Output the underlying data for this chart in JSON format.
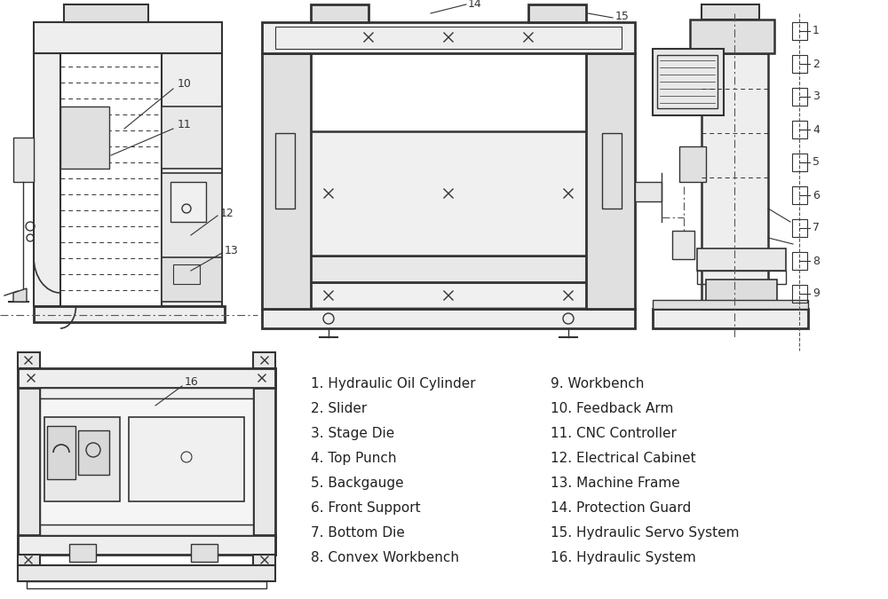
{
  "background_color": "#ffffff",
  "line_color": "#333333",
  "legend_col1": [
    "1. Hydraulic Oil Cylinder",
    "2. Slider",
    "3. Stage Die",
    "4. Top Punch",
    "5. Backgauge",
    "6. Front Support",
    "7. Bottom Die",
    "8. Convex Workbench"
  ],
  "legend_col2": [
    "9. Workbench",
    "10. Feedback Arm",
    "11. CNC Controller",
    "12. Electrical Cabinet",
    "13. Machine Frame",
    "14. Protection Guard",
    "15. Hydraulic Servo System",
    "16. Hydraulic System"
  ],
  "fig_width": 10.0,
  "fig_height": 6.75,
  "dpi": 100
}
